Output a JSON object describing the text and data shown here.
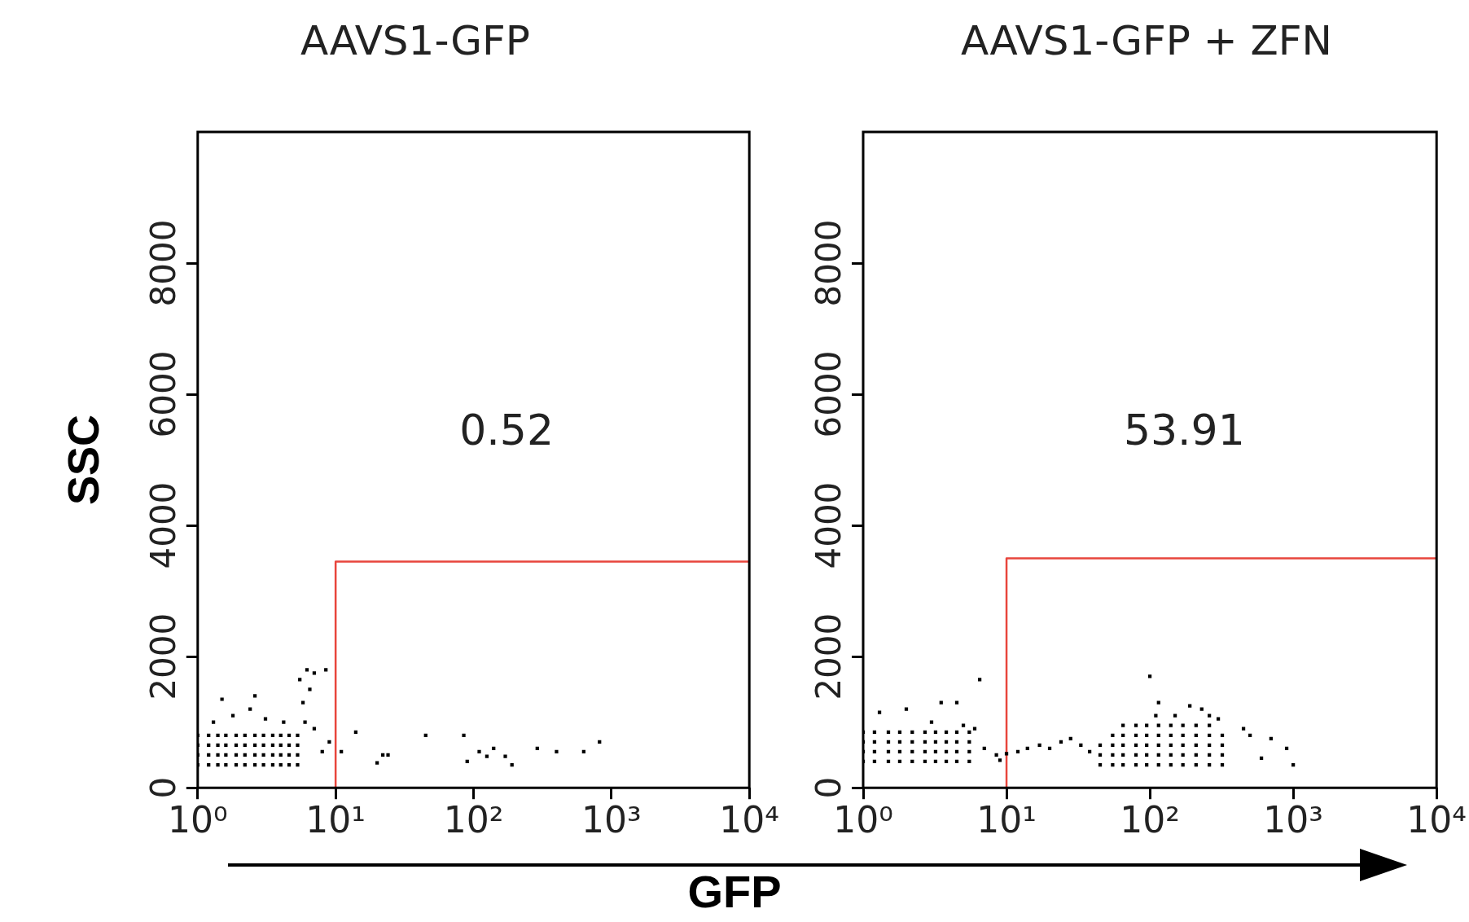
{
  "chart_data": [
    {
      "type": "scatter",
      "title": "AAVS1-GFP",
      "xlabel": "GFP",
      "ylabel": "SSC",
      "log": "x",
      "xlim": [
        1,
        10000
      ],
      "xticks": [
        {
          "value": 1,
          "label": "10⁰"
        },
        {
          "value": 10,
          "label": "10¹"
        },
        {
          "value": 100,
          "label": "10²"
        },
        {
          "value": 1000,
          "label": "10³"
        },
        {
          "value": 10000,
          "label": "10⁴"
        }
      ],
      "ylim": [
        0,
        10000
      ],
      "yticks": [
        0,
        2000,
        4000,
        6000,
        8000
      ],
      "grid": false,
      "legend": false,
      "annotations": [
        "0.52"
      ],
      "series": [
        {
          "type": "scatter",
          "marker": "square",
          "color": "#000000",
          "x": [
            1.0,
            1.2,
            1.4,
            1.6,
            1.9,
            2.2,
            2.6,
            3.0,
            3.5,
            4.0,
            4.6,
            5.3,
            1.0,
            1.2,
            1.4,
            1.6,
            1.9,
            2.2,
            2.6,
            3.0,
            3.5,
            4.0,
            4.6,
            5.3,
            1.0,
            1.2,
            1.4,
            1.6,
            1.9,
            2.2,
            2.6,
            3.0,
            3.5,
            4.0,
            4.6,
            5.3,
            1.0,
            1.2,
            1.4,
            1.6,
            1.9,
            2.2,
            2.6,
            3.0,
            3.5,
            4.0,
            4.6,
            5.3,
            1.3,
            1.8,
            2.4,
            3.1,
            4.2,
            1.5,
            2.6,
            5.5,
            6.2,
            7.0,
            6.5,
            5.8,
            8.5,
            6.0,
            7.0,
            8.0,
            9.0,
            11,
            14,
            20,
            22,
            24,
            45,
            85,
            90,
            110,
            125,
            140,
            170,
            190,
            290,
            400,
            630,
            820
          ],
          "values": [
            350,
            350,
            350,
            350,
            350,
            350,
            350,
            350,
            350,
            350,
            350,
            350,
            500,
            500,
            500,
            500,
            500,
            500,
            500,
            500,
            500,
            500,
            500,
            500,
            650,
            650,
            650,
            650,
            650,
            650,
            650,
            650,
            650,
            650,
            650,
            650,
            800,
            800,
            800,
            800,
            800,
            800,
            800,
            800,
            800,
            800,
            800,
            800,
            1000,
            1100,
            1200,
            1050,
            1000,
            1350,
            1400,
            1650,
            1800,
            1750,
            1500,
            1300,
            1800,
            1000,
            900,
            550,
            700,
            550,
            850,
            380,
            500,
            500,
            800,
            800,
            400,
            550,
            480,
            600,
            480,
            350,
            600,
            550,
            550,
            700
          ]
        },
        {
          "type": "line",
          "marker": "none",
          "color": "#e8453c",
          "x": [
            10,
            10,
            10000
          ],
          "values": [
            0,
            3450,
            3450
          ]
        }
      ]
    },
    {
      "type": "scatter",
      "title": "AAVS1-GFP + ZFN",
      "log": "x",
      "xlim": [
        1,
        10000
      ],
      "xticks": [
        {
          "value": 1,
          "label": "10⁰"
        },
        {
          "value": 10,
          "label": "10¹"
        },
        {
          "value": 100,
          "label": "10²"
        },
        {
          "value": 1000,
          "label": "10³"
        },
        {
          "value": 10000,
          "label": "10⁴"
        }
      ],
      "ylim": [
        0,
        10000
      ],
      "yticks": [
        0,
        2000,
        4000,
        6000,
        8000
      ],
      "grid": false,
      "legend": false,
      "annotations": [
        "53.91"
      ],
      "series": [
        {
          "type": "scatter",
          "marker": "square",
          "color": "#000000",
          "x": [
            1.0,
            1.2,
            1.5,
            1.8,
            2.2,
            2.7,
            3.2,
            3.8,
            4.5,
            5.5,
            1.0,
            1.2,
            1.5,
            1.8,
            2.2,
            2.7,
            3.2,
            3.8,
            4.5,
            5.5,
            1.0,
            1.2,
            1.5,
            1.8,
            2.2,
            2.7,
            3.2,
            3.8,
            4.5,
            5.5,
            1.0,
            1.2,
            1.5,
            1.8,
            2.2,
            2.7,
            3.2,
            3.8,
            4.5,
            5.5,
            7,
            8.5,
            10,
            12,
            14,
            17,
            20,
            24,
            28,
            33,
            38,
            9,
            45,
            55,
            65,
            80,
            95,
            115,
            140,
            170,
            210,
            260,
            320,
            45,
            55,
            65,
            80,
            95,
            115,
            140,
            170,
            210,
            260,
            320,
            45,
            55,
            65,
            80,
            95,
            115,
            140,
            170,
            210,
            260,
            320,
            55,
            65,
            80,
            95,
            115,
            140,
            170,
            210,
            260,
            320,
            65,
            80,
            95,
            115,
            140,
            170,
            210,
            260,
            1.3,
            2.0,
            3.5,
            4.5,
            6.5,
            3,
            5,
            6,
            100,
            115,
            110,
            150,
            190,
            230,
            260,
            300,
            450,
            500,
            700,
            900,
            1000,
            600
          ],
          "values": [
            400,
            400,
            400,
            400,
            400,
            400,
            400,
            400,
            400,
            400,
            550,
            550,
            550,
            550,
            550,
            550,
            550,
            550,
            550,
            550,
            700,
            700,
            700,
            700,
            700,
            700,
            700,
            700,
            700,
            700,
            850,
            850,
            850,
            850,
            850,
            850,
            850,
            850,
            850,
            850,
            600,
            500,
            520,
            550,
            600,
            650,
            600,
            700,
            750,
            650,
            550,
            420,
            350,
            350,
            350,
            350,
            350,
            350,
            350,
            350,
            350,
            350,
            350,
            500,
            500,
            500,
            500,
            500,
            500,
            500,
            500,
            500,
            500,
            500,
            650,
            650,
            650,
            650,
            650,
            650,
            650,
            650,
            650,
            650,
            650,
            800,
            800,
            800,
            800,
            800,
            800,
            800,
            800,
            800,
            800,
            950,
            950,
            950,
            950,
            950,
            950,
            950,
            950,
            1150,
            1200,
            1300,
            1300,
            1650,
            1000,
            950,
            900,
            1700,
            1300,
            1100,
            1100,
            1250,
            1200,
            1100,
            1050,
            900,
            800,
            750,
            600,
            350,
            450
          ]
        },
        {
          "type": "line",
          "marker": "none",
          "color": "#e8453c",
          "x": [
            10,
            10,
            10000
          ],
          "values": [
            0,
            3500,
            3500
          ]
        }
      ]
    }
  ]
}
